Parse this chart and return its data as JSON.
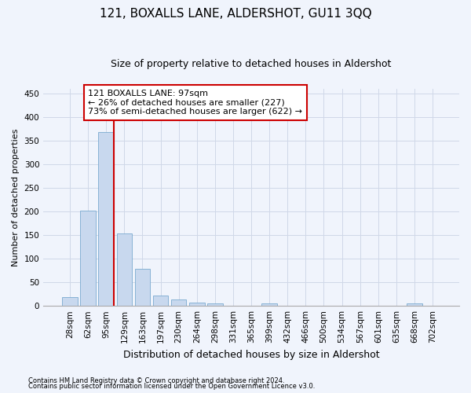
{
  "title": "121, BOXALLS LANE, ALDERSHOT, GU11 3QQ",
  "subtitle": "Size of property relative to detached houses in Aldershot",
  "xlabel": "Distribution of detached houses by size in Aldershot",
  "ylabel": "Number of detached properties",
  "footnote1": "Contains HM Land Registry data © Crown copyright and database right 2024.",
  "footnote2": "Contains public sector information licensed under the Open Government Licence v3.0.",
  "bar_labels": [
    "28sqm",
    "62sqm",
    "95sqm",
    "129sqm",
    "163sqm",
    "197sqm",
    "230sqm",
    "264sqm",
    "298sqm",
    "331sqm",
    "365sqm",
    "399sqm",
    "432sqm",
    "466sqm",
    "500sqm",
    "534sqm",
    "567sqm",
    "601sqm",
    "635sqm",
    "668sqm",
    "702sqm"
  ],
  "bar_values": [
    18,
    202,
    368,
    154,
    79,
    22,
    14,
    7,
    5,
    0,
    0,
    5,
    0,
    0,
    0,
    0,
    0,
    0,
    0,
    5,
    0
  ],
  "bar_color": "#c8d8ee",
  "bar_edge_color": "#7aaad0",
  "grid_color": "#d0d8e8",
  "background_color": "#f0f4fc",
  "red_line_color": "#cc0000",
  "red_line_bar_index": 2,
  "annotation_text": "121 BOXALLS LANE: 97sqm\n← 26% of detached houses are smaller (227)\n73% of semi-detached houses are larger (622) →",
  "annotation_box_facecolor": "#ffffff",
  "annotation_box_edgecolor": "#cc0000",
  "ylim": [
    0,
    460
  ],
  "yticks": [
    0,
    50,
    100,
    150,
    200,
    250,
    300,
    350,
    400,
    450
  ],
  "title_fontsize": 11,
  "subtitle_fontsize": 9,
  "ylabel_fontsize": 8,
  "xlabel_fontsize": 9,
  "tick_fontsize": 7.5,
  "annot_fontsize": 8,
  "footnote_fontsize": 6
}
